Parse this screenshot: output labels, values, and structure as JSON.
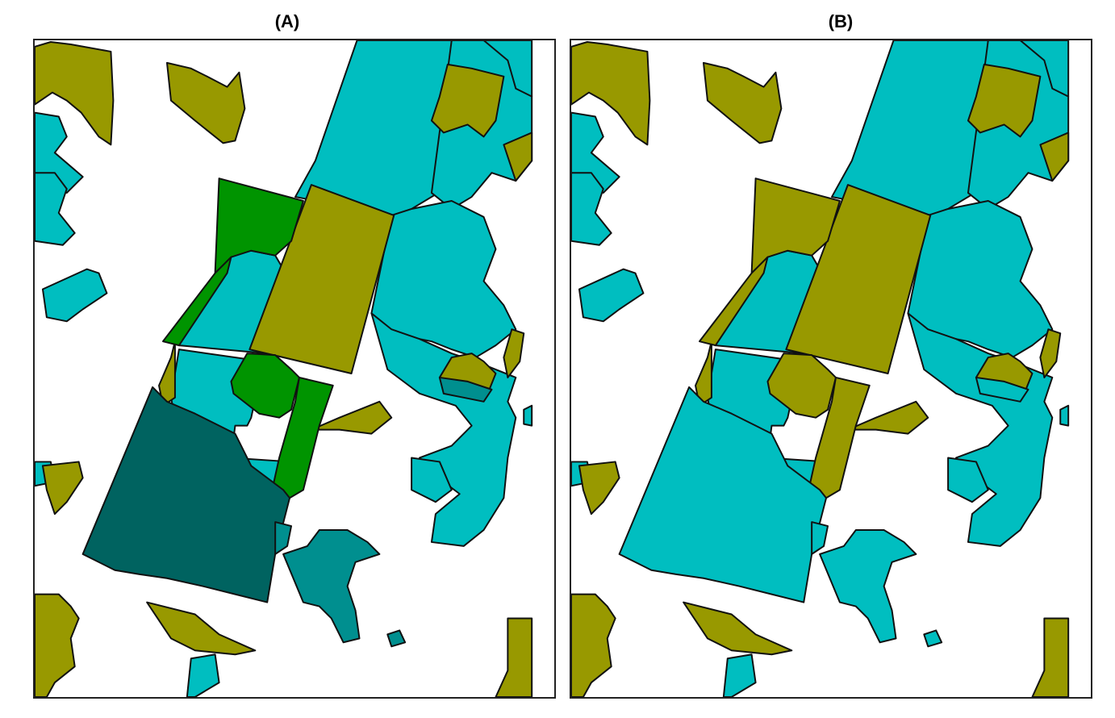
{
  "panels": [
    {
      "label": "(A)"
    },
    {
      "label": "(B)"
    }
  ],
  "colors": {
    "cyan": "#00BEC0",
    "olive": "#989900",
    "green": "#009400",
    "dark_teal": "#006360",
    "teal": "#008F8F",
    "background": "#FFFFFF",
    "outline": "#111111"
  }
}
